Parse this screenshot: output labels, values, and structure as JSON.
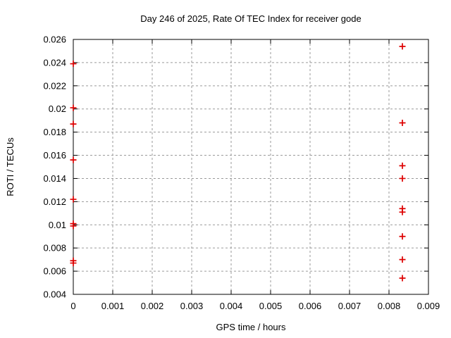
{
  "chart": {
    "title": "Day 246 of 2025, Rate Of TEC Index for receiver gode",
    "xlabel": "GPS time / hours",
    "ylabel": "ROTI / TECUs"
  },
  "chart_data": {
    "type": "scatter",
    "title": "Day 246 of 2025, Rate Of TEC Index for receiver gode",
    "xlabel": "GPS time / hours",
    "ylabel": "ROTI / TECUs",
    "xlim": [
      0,
      0.009
    ],
    "ylim": [
      0.004,
      0.026
    ],
    "grid": true,
    "legend": "none",
    "marker": "plus",
    "colors": {
      "marker": "#dd0000",
      "grid": "#9a9a9a",
      "frame": "#000000",
      "text": "#000000"
    },
    "xticks": {
      "values": [
        0,
        0.001,
        0.002,
        0.003,
        0.004,
        0.005,
        0.006,
        0.007,
        0.008,
        0.009
      ],
      "labels": [
        "0",
        "0.001",
        "0.002",
        "0.003",
        "0.004",
        "0.005",
        "0.006",
        "0.007",
        "0.008",
        "0.009"
      ]
    },
    "yticks": {
      "values": [
        0.004,
        0.006,
        0.008,
        0.01,
        0.012,
        0.014,
        0.016,
        0.018,
        0.02,
        0.022,
        0.024,
        0.026
      ],
      "labels": [
        "0.004",
        "0.006",
        "0.008",
        "0.01",
        "0.012",
        "0.014",
        "0.016",
        "0.018",
        "0.02",
        "0.022",
        "0.024",
        "0.026"
      ]
    },
    "series": [
      {
        "name": "ROTI",
        "points": [
          [
            0,
            0.0239
          ],
          [
            0,
            0.0201
          ],
          [
            0,
            0.0187
          ],
          [
            0,
            0.0156
          ],
          [
            0,
            0.0122
          ],
          [
            0,
            0.0101
          ],
          [
            0,
            0.0099
          ],
          [
            0,
            0.0069
          ],
          [
            0,
            0.0067
          ],
          [
            0.00834,
            0.0254
          ],
          [
            0.00834,
            0.0188
          ],
          [
            0.00834,
            0.0151
          ],
          [
            0.00834,
            0.014
          ],
          [
            0.00834,
            0.0114
          ],
          [
            0.00834,
            0.0111
          ],
          [
            0.00834,
            0.009
          ],
          [
            0.00834,
            0.007
          ],
          [
            0.00834,
            0.0054
          ]
        ]
      }
    ]
  }
}
